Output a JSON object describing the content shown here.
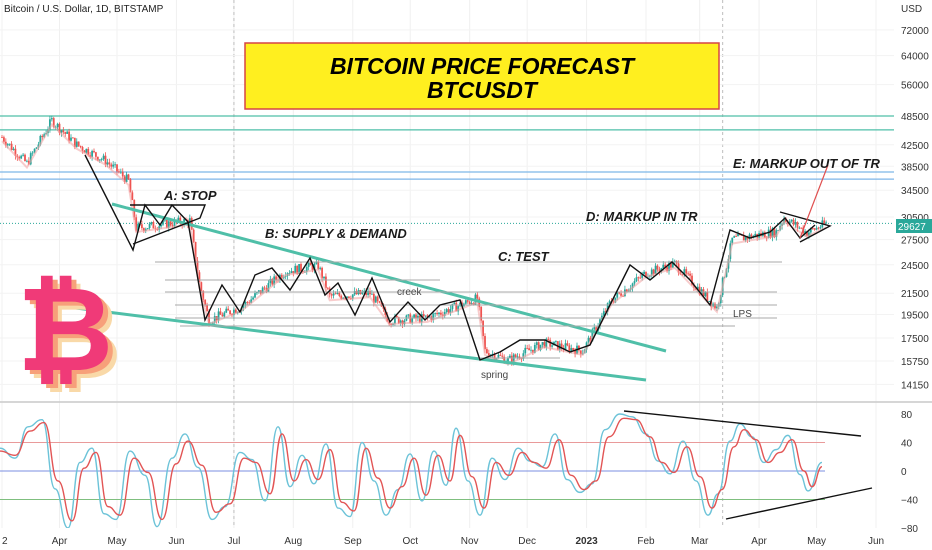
{
  "header": {
    "symbol": "Bitcoin / U.S. Dollar, 1D, BITSTAMP",
    "currency": "USD",
    "current_price": "29627"
  },
  "title": {
    "line1": "BITCOIN PRICE FORECAST",
    "line2": "BTCUSDT"
  },
  "annotations": {
    "phase_a": "A: STOP",
    "phase_b": "B: SUPPLY & DEMAND",
    "phase_c": "C: TEST",
    "phase_d": "D: MARKUP IN TR",
    "phase_e": "E: MARKUP OUT OF TR",
    "creek": "creek",
    "spring": "spring",
    "lps": "LPS"
  },
  "colors": {
    "up_candle": "#26a69a",
    "down_candle": "#ef5350",
    "teal_line": "#4fbfa8",
    "blue_line": "#7eb6e8",
    "osc_fast": "#6cc3d8",
    "osc_slow": "#e25555",
    "title_bg": "#ffef1f",
    "title_border": "#d54545",
    "price_tag": "#2aa89a",
    "logo": "#f03a78"
  },
  "chart_data": [
    {
      "type": "candlestick",
      "title": "BITCOIN PRICE FORECAST BTCUSDT",
      "xlabel": "",
      "ylabel": "USD",
      "y_scale": "log",
      "ylim": [
        13000,
        80000
      ],
      "x_tick_labels": [
        "2",
        "Apr",
        "May",
        "Jun",
        "Jul",
        "Aug",
        "Sep",
        "Oct",
        "Nov",
        "Dec",
        "2023",
        "Feb",
        "Mar",
        "Apr",
        "May",
        "Jun"
      ],
      "y_tick_labels": [
        "72000",
        "64000",
        "56000",
        "48500",
        "42500",
        "38500",
        "34500",
        "30500",
        "27500",
        "24500",
        "21500",
        "19500",
        "17500",
        "15750",
        "14150"
      ],
      "last_price": 29627,
      "close_path": [
        {
          "date": "2022-03-02",
          "price": 44000
        },
        {
          "date": "2022-03-15",
          "price": 39000
        },
        {
          "date": "2022-03-28",
          "price": 47500
        },
        {
          "date": "2022-04-10",
          "price": 42500
        },
        {
          "date": "2022-04-25",
          "price": 39500
        },
        {
          "date": "2022-05-07",
          "price": 36000
        },
        {
          "date": "2022-05-11",
          "price": 29000
        },
        {
          "date": "2022-05-25",
          "price": 29500
        },
        {
          "date": "2022-06-08",
          "price": 30000
        },
        {
          "date": "2022-06-13",
          "price": 22500
        },
        {
          "date": "2022-06-18",
          "price": 19000
        },
        {
          "date": "2022-07-05",
          "price": 20200
        },
        {
          "date": "2022-07-28",
          "price": 23800
        },
        {
          "date": "2022-08-14",
          "price": 24400
        },
        {
          "date": "2022-08-20",
          "price": 21200
        },
        {
          "date": "2022-09-10",
          "price": 21500
        },
        {
          "date": "2022-09-20",
          "price": 19000
        },
        {
          "date": "2022-10-10",
          "price": 19200
        },
        {
          "date": "2022-11-05",
          "price": 21000
        },
        {
          "date": "2022-11-09",
          "price": 16500
        },
        {
          "date": "2022-11-21",
          "price": 15800
        },
        {
          "date": "2022-12-10",
          "price": 17100
        },
        {
          "date": "2022-12-30",
          "price": 16500
        },
        {
          "date": "2023-01-14",
          "price": 20800
        },
        {
          "date": "2023-02-01",
          "price": 23600
        },
        {
          "date": "2023-02-16",
          "price": 24600
        },
        {
          "date": "2023-03-10",
          "price": 20100
        },
        {
          "date": "2023-03-18",
          "price": 27500
        },
        {
          "date": "2023-04-10",
          "price": 28500
        },
        {
          "date": "2023-04-14",
          "price": 30400
        },
        {
          "date": "2023-04-26",
          "price": 28400
        },
        {
          "date": "2023-05-06",
          "price": 29627
        }
      ],
      "horizontal_levels": [
        {
          "price": 48500,
          "color": "teal"
        },
        {
          "price": 45500,
          "color": "teal"
        },
        {
          "price": 37500,
          "color": "blue"
        },
        {
          "price": 36300,
          "color": "blue"
        }
      ]
    },
    {
      "type": "line",
      "title": "",
      "xlabel": "",
      "ylabel": "",
      "ylim": [
        -85,
        85
      ],
      "y_tick_labels": [
        "80",
        "40",
        "0",
        "−40",
        "−80"
      ],
      "reference_levels": [
        40,
        0,
        -40
      ],
      "series": [
        {
          "color": "fast",
          "points": [
            [
              0,
              32
            ],
            [
              15,
              18
            ],
            [
              28,
              62
            ],
            [
              42,
              72
            ],
            [
              55,
              -25
            ],
            [
              68,
              -80
            ],
            [
              80,
              12
            ],
            [
              92,
              32
            ],
            [
              104,
              -60
            ],
            [
              116,
              -68
            ],
            [
              130,
              28
            ],
            [
              145,
              -6
            ],
            [
              157,
              -78
            ],
            [
              172,
              18
            ],
            [
              185,
              52
            ],
            [
              198,
              5
            ],
            [
              212,
              -68
            ],
            [
              225,
              -50
            ],
            [
              240,
              26
            ],
            [
              252,
              16
            ],
            [
              265,
              -42
            ],
            [
              278,
              62
            ],
            [
              290,
              -22
            ],
            [
              302,
              22
            ],
            [
              314,
              -18
            ],
            [
              326,
              38
            ],
            [
              338,
              -52
            ],
            [
              350,
              -64
            ],
            [
              362,
              40
            ],
            [
              374,
              -14
            ],
            [
              386,
              -62
            ],
            [
              398,
              -26
            ],
            [
              410,
              24
            ],
            [
              422,
              -42
            ],
            [
              434,
              28
            ],
            [
              446,
              -20
            ],
            [
              456,
              60
            ],
            [
              468,
              -14
            ],
            [
              480,
              -62
            ],
            [
              492,
              18
            ],
            [
              505,
              -12
            ],
            [
              518,
              32
            ],
            [
              530,
              14
            ],
            [
              542,
              6
            ],
            [
              555,
              52
            ],
            [
              567,
              -12
            ],
            [
              580,
              -30
            ],
            [
              592,
              -18
            ],
            [
              605,
              58
            ],
            [
              620,
              80
            ],
            [
              632,
              76
            ],
            [
              646,
              52
            ],
            [
              658,
              14
            ],
            [
              670,
              -4
            ],
            [
              683,
              42
            ],
            [
              696,
              -14
            ],
            [
              708,
              -62
            ],
            [
              718,
              -32
            ],
            [
              730,
              42
            ],
            [
              740,
              66
            ],
            [
              752,
              48
            ],
            [
              764,
              12
            ],
            [
              776,
              30
            ],
            [
              788,
              50
            ],
            [
              800,
              -5
            ],
            [
              808,
              -28
            ],
            [
              822,
              12
            ]
          ]
        },
        {
          "color": "slow",
          "points": [
            [
              0,
              28
            ],
            [
              15,
              22
            ],
            [
              30,
              56
            ],
            [
              44,
              68
            ],
            [
              58,
              -14
            ],
            [
              72,
              -70
            ],
            [
              84,
              4
            ],
            [
              96,
              26
            ],
            [
              108,
              -50
            ],
            [
              120,
              -62
            ],
            [
              134,
              18
            ],
            [
              148,
              -2
            ],
            [
              162,
              -68
            ],
            [
              176,
              10
            ],
            [
              188,
              42
            ],
            [
              202,
              8
            ],
            [
              216,
              -58
            ],
            [
              230,
              -46
            ],
            [
              244,
              18
            ],
            [
              256,
              12
            ],
            [
              270,
              -32
            ],
            [
              282,
              52
            ],
            [
              294,
              -14
            ],
            [
              306,
              16
            ],
            [
              318,
              -12
            ],
            [
              330,
              30
            ],
            [
              342,
              -44
            ],
            [
              354,
              -56
            ],
            [
              366,
              32
            ],
            [
              378,
              -10
            ],
            [
              390,
              -52
            ],
            [
              402,
              -22
            ],
            [
              414,
              18
            ],
            [
              426,
              -34
            ],
            [
              438,
              22
            ],
            [
              450,
              -14
            ],
            [
              460,
              50
            ],
            [
              472,
              -8
            ],
            [
              484,
              -52
            ],
            [
              496,
              12
            ],
            [
              509,
              -6
            ],
            [
              522,
              26
            ],
            [
              534,
              12
            ],
            [
              546,
              4
            ],
            [
              559,
              44
            ],
            [
              571,
              -6
            ],
            [
              584,
              -26
            ],
            [
              596,
              -14
            ],
            [
              609,
              48
            ],
            [
              624,
              74
            ],
            [
              636,
              72
            ],
            [
              650,
              48
            ],
            [
              662,
              12
            ],
            [
              674,
              -2
            ],
            [
              687,
              34
            ],
            [
              700,
              -8
            ],
            [
              712,
              -52
            ],
            [
              722,
              -26
            ],
            [
              734,
              34
            ],
            [
              744,
              58
            ],
            [
              756,
              44
            ],
            [
              768,
              12
            ],
            [
              780,
              26
            ],
            [
              792,
              44
            ],
            [
              804,
              0
            ],
            [
              812,
              -22
            ],
            [
              822,
              6
            ]
          ]
        }
      ]
    }
  ]
}
